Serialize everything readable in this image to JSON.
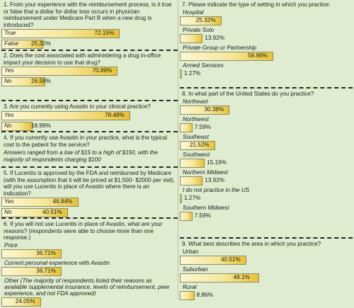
{
  "chart_data": {
    "type": "bar",
    "questions": [
      {
        "id": "q1",
        "text": "1. From your experience with the reimbursement process, is it true or false that a dollar for dollar loss occurs in physician reimbursement under Medicare Part B when a new drug is introduced?",
        "options": [
          {
            "label": "True",
            "value": 72.15,
            "text": "72.15%"
          },
          {
            "label": "False",
            "value": 25.32,
            "text": "25.32%"
          }
        ]
      },
      {
        "id": "q2",
        "text": "2. Does the cost associated with administering a drug in-office impact your decision to use that drug?",
        "options": [
          {
            "label": "Yes",
            "value": 70.89,
            "text": "70.89%"
          },
          {
            "label": "No",
            "value": 26.58,
            "text": "26.58%"
          }
        ]
      },
      {
        "id": "q3",
        "text": "3. Are you currently using Avastin in your clinical practice?",
        "options": [
          {
            "label": "Yes",
            "value": 78.48,
            "text": "78.48%"
          },
          {
            "label": "No",
            "value": 18.99,
            "text": "18.99%"
          }
        ]
      },
      {
        "id": "q4",
        "text": "4. If you currently use Avastin in your practice, what is the typical cost to the patient for the service?",
        "note": "Answers ranged from a low of $15 to a high of $150, with the majority of respondents charging $100"
      },
      {
        "id": "q5",
        "text": "5. If Lucentis is approved by the FDA and reimbursed by Medicare (with the assumption that it will be priced at $1,500- $2000 per vial), will you use Lucentis in place of Avastin where there is an indication?",
        "options": [
          {
            "label": "Yes",
            "value": 46.84,
            "text": "46.84%"
          },
          {
            "label": "No",
            "value": 40.51,
            "text": "40.51%"
          }
        ]
      },
      {
        "id": "q6",
        "text": "6. If you will not use Lucentis in place of Avastin, what are your reasons? (respondents were able to choose more than one response.)",
        "options": [
          {
            "label": "Price",
            "value": 36.71,
            "text": "36.71%"
          },
          {
            "label": "Current personal experience with Avastin",
            "value": 36.71,
            "text": "36.71%"
          },
          {
            "label": "Other (The majority of respondents listed their reasons as available supplemental insurance, levels of reimbursement, peer experience, and not FDA approved)",
            "value": 24.05,
            "text": "24.05%"
          }
        ]
      },
      {
        "id": "q7",
        "text": "7. Please indicate the type of setting in which you practice:",
        "options": [
          {
            "label": "Hospital",
            "value": 25.32,
            "text": "25.32%"
          },
          {
            "label": "Private Solo",
            "value": 13.92,
            "text": "13.92%"
          },
          {
            "label": "Private Group or Partnership",
            "value": 56.96,
            "text": "56.96%"
          },
          {
            "label": "Armed Services",
            "value": 1.27,
            "text": "1.27%"
          }
        ]
      },
      {
        "id": "q8",
        "text": "8. In what part of the United States do you practice?",
        "options": [
          {
            "label": "Northeast",
            "value": 30.38,
            "text": "30.38%"
          },
          {
            "label": "Northwest",
            "value": 7.59,
            "text": "7.59%"
          },
          {
            "label": "Southeast",
            "value": 21.52,
            "text": "21.52%"
          },
          {
            "label": "Southwest",
            "value": 15.19,
            "text": "15.19%"
          },
          {
            "label": "Northern Midwest",
            "value": 13.92,
            "text": "13.92%"
          },
          {
            "label": "I do not practice in the US",
            "value": 1.27,
            "text": "1.27%"
          },
          {
            "label": "Southern Midwest",
            "value": 7.59,
            "text": "7.59%"
          }
        ]
      },
      {
        "id": "q9",
        "text": "9. What best describes the area in which you practice?",
        "options": [
          {
            "label": "Urban",
            "value": 40.51,
            "text": "40.51%"
          },
          {
            "label": "Suburban",
            "value": 48.1,
            "text": "48.1%"
          },
          {
            "label": "Rural",
            "value": 8.86,
            "text": "8.86%"
          }
        ]
      }
    ],
    "colors": {
      "bar_light": "#fbf6d4",
      "bar_dark": "#e7c233",
      "background": "#dfeccf"
    }
  }
}
